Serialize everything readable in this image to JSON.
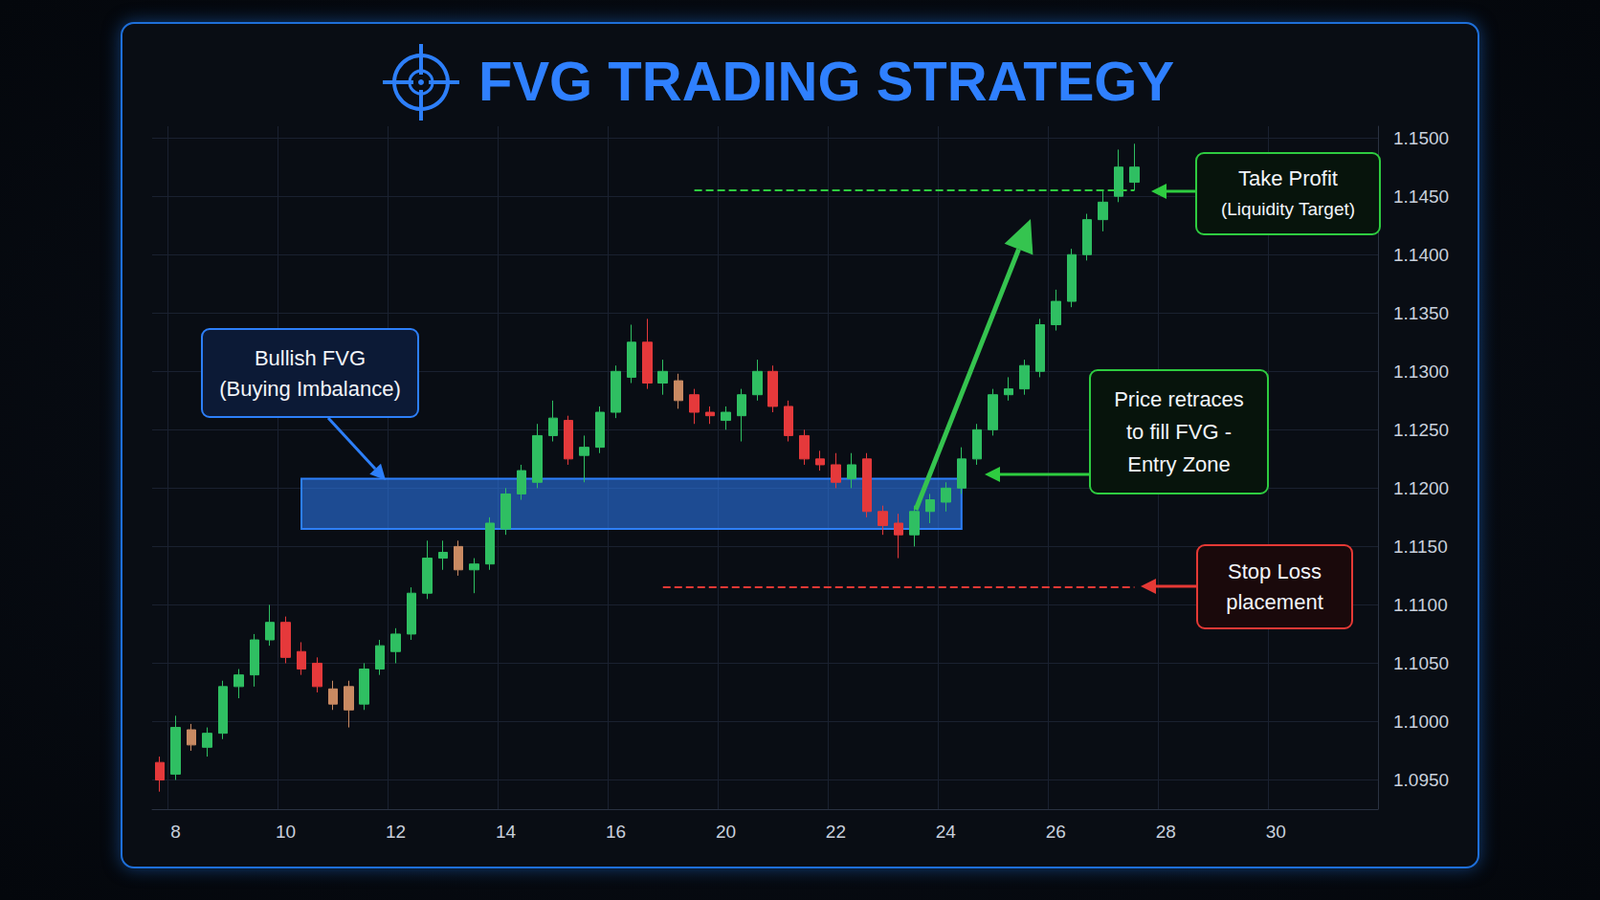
{
  "chart_data": {
    "type": "candlestick",
    "title": "FVG TRADING STRATEGY",
    "x": [
      null,
      "8",
      null,
      null,
      null,
      null,
      null,
      null,
      "10",
      null,
      null,
      null,
      null,
      null,
      null,
      "12",
      null,
      null,
      null,
      null,
      null,
      null,
      "14",
      null,
      null,
      null,
      null,
      null,
      null,
      "16",
      null,
      null,
      null,
      null,
      null,
      null,
      "20",
      null,
      null,
      null,
      null,
      null,
      null,
      "22",
      null,
      null,
      null,
      null,
      null,
      null,
      "24",
      null,
      null,
      null,
      null,
      null,
      null,
      "26",
      null,
      null,
      null,
      null,
      null,
      null,
      "28",
      null,
      null,
      null,
      null,
      null,
      null,
      "30",
      null,
      null,
      null,
      null,
      null,
      null
    ],
    "open": [
      1.0965,
      1.0955,
      1.0993,
      1.0978,
      1.099,
      1.103,
      1.104,
      1.107,
      1.1085,
      1.106,
      1.105,
      1.1028,
      1.103,
      1.1015,
      1.1045,
      1.106,
      1.1075,
      1.111,
      1.114,
      1.115,
      1.113,
      1.1135,
      1.1165,
      1.1195,
      1.1205,
      1.1245,
      1.1258,
      1.1228,
      1.1235,
      1.1265,
      1.1295,
      1.1325,
      1.129,
      1.1292,
      1.128,
      1.1265,
      1.1258,
      1.1262,
      1.128,
      1.13,
      1.127,
      1.1245,
      1.1225,
      1.122,
      1.1208,
      1.1225,
      1.118,
      1.117,
      1.116,
      1.118,
      1.1188,
      1.12,
      1.1225,
      1.125,
      1.128,
      1.1285,
      1.13,
      1.134,
      1.136,
      1.14,
      1.143,
      1.145,
      1.1462,
      null,
      null,
      null,
      null,
      null,
      null,
      null,
      null,
      null,
      null,
      null,
      null,
      null,
      null,
      null
    ],
    "high": [
      1.097,
      1.1005,
      1.0998,
      1.0995,
      1.1035,
      1.1045,
      1.1075,
      1.11,
      1.109,
      1.1068,
      1.1055,
      1.1035,
      1.1035,
      1.105,
      1.107,
      1.108,
      1.1115,
      1.1155,
      1.1155,
      1.1155,
      1.114,
      1.1175,
      1.12,
      1.122,
      1.1255,
      1.1275,
      1.1262,
      1.1245,
      1.127,
      1.1305,
      1.134,
      1.1345,
      1.131,
      1.1298,
      1.1285,
      1.127,
      1.127,
      1.1285,
      1.131,
      1.1305,
      1.1275,
      1.125,
      1.1232,
      1.123,
      1.123,
      1.123,
      1.1185,
      1.1178,
      1.1185,
      1.1195,
      1.1205,
      1.1235,
      1.1255,
      1.1285,
      1.1295,
      1.131,
      1.1345,
      1.137,
      1.1405,
      1.1435,
      1.1455,
      1.149,
      1.1495,
      null,
      null,
      null,
      null,
      null,
      null,
      null,
      null,
      null,
      null,
      null,
      null,
      null,
      null,
      null
    ],
    "low": [
      1.094,
      1.095,
      1.0975,
      1.097,
      1.0985,
      1.102,
      1.103,
      1.1065,
      1.105,
      1.104,
      1.1025,
      1.101,
      1.0995,
      1.101,
      1.104,
      1.105,
      1.107,
      1.1105,
      1.113,
      1.1125,
      1.111,
      1.113,
      1.116,
      1.119,
      1.12,
      1.124,
      1.122,
      1.1205,
      1.123,
      1.126,
      1.129,
      1.1285,
      1.128,
      1.1268,
      1.1255,
      1.1255,
      1.125,
      1.124,
      1.1275,
      1.1265,
      1.124,
      1.122,
      1.1215,
      1.12,
      1.12,
      1.1175,
      1.116,
      1.114,
      1.115,
      1.117,
      1.118,
      1.1195,
      1.122,
      1.1245,
      1.1275,
      1.128,
      1.1295,
      1.1335,
      1.1355,
      1.1395,
      1.142,
      1.1445,
      1.1455,
      null,
      null,
      null,
      null,
      null,
      null,
      null,
      null,
      null,
      null,
      null,
      null,
      null,
      null,
      null
    ],
    "close": [
      1.095,
      1.0995,
      1.098,
      1.099,
      1.103,
      1.104,
      1.107,
      1.1085,
      1.1055,
      1.1045,
      1.103,
      1.1015,
      1.101,
      1.1045,
      1.1065,
      1.1075,
      1.111,
      1.114,
      1.1145,
      1.113,
      1.1135,
      1.117,
      1.1195,
      1.1215,
      1.1245,
      1.126,
      1.1225,
      1.1235,
      1.1265,
      1.13,
      1.1325,
      1.129,
      1.13,
      1.1275,
      1.1265,
      1.1262,
      1.1265,
      1.128,
      1.13,
      1.127,
      1.1245,
      1.1225,
      1.122,
      1.1205,
      1.122,
      1.118,
      1.1168,
      1.116,
      1.118,
      1.119,
      1.12,
      1.1225,
      1.125,
      1.128,
      1.1285,
      1.1305,
      1.134,
      1.136,
      1.14,
      1.143,
      1.1445,
      1.1475,
      1.1475,
      null,
      null,
      null,
      null,
      null,
      null,
      null,
      null,
      null,
      null,
      null,
      null,
      null,
      null,
      null
    ],
    "colors": [
      "#e5393b",
      "#2fbf62",
      "#c98a62",
      "#2fbf62",
      "#2fbf62",
      "#2fbf62",
      "#2fbf62",
      "#2fbf62",
      "#e5393b",
      "#e5393b",
      "#e5393b",
      "#c98a62",
      "#c98a62",
      "#2fbf62",
      "#2fbf62",
      "#2fbf62",
      "#2fbf62",
      "#2fbf62",
      "#2fbf62",
      "#c98a62",
      "#2fbf62",
      "#2fbf62",
      "#2fbf62",
      "#2fbf62",
      "#2fbf62",
      "#2fbf62",
      "#e5393b",
      "#2fbf62",
      "#2fbf62",
      "#2fbf62",
      "#2fbf62",
      "#e5393b",
      "#2fbf62",
      "#c98a62",
      "#e5393b",
      "#e5393b",
      "#2fbf62",
      "#2fbf62",
      "#2fbf62",
      "#e5393b",
      "#e5393b",
      "#e5393b",
      "#e5393b",
      "#e5393b",
      "#2fbf62",
      "#e5393b",
      "#e5393b",
      "#e5393b",
      "#2fbf62",
      "#2fbf62",
      "#2fbf62",
      "#2fbf62",
      "#2fbf62",
      "#2fbf62",
      "#2fbf62",
      "#2fbf62",
      "#2fbf62",
      "#2fbf62",
      "#2fbf62",
      "#2fbf62",
      "#2fbf62",
      "#2fbf62",
      "#2fbf62",
      null,
      null,
      null,
      null,
      null,
      null,
      null,
      null,
      null,
      null,
      null,
      null,
      null,
      null,
      null
    ],
    "ylim": [
      1.0925,
      1.151
    ],
    "yticks": [
      {
        "value": 1.095,
        "label": "1.0950"
      },
      {
        "value": 1.1,
        "label": "1.1000"
      },
      {
        "value": 1.105,
        "label": "1.1050"
      },
      {
        "value": 1.11,
        "label": "1.1100"
      },
      {
        "value": 1.115,
        "label": "1.1150"
      },
      {
        "value": 1.12,
        "label": "1.1200"
      },
      {
        "value": 1.125,
        "label": "1.1250"
      },
      {
        "value": 1.13,
        "label": "1.1300"
      },
      {
        "value": 1.135,
        "label": "1.1350"
      },
      {
        "value": 1.14,
        "label": "1.1400"
      },
      {
        "value": 1.145,
        "label": "1.1450"
      },
      {
        "value": 1.15,
        "label": "1.1500"
      }
    ],
    "grid": true,
    "annotations": [
      {
        "type": "zone",
        "text": [
          "Bullish FVG",
          "(Buying Imbalance)"
        ],
        "x": [
          9,
          51
        ],
        "y": [
          1.1165,
          1.1208
        ],
        "color": "#2d7ff9"
      },
      {
        "type": "callout",
        "text": [
          "Price retraces",
          "to fill FVG -",
          "Entry Zone"
        ],
        "color": "#2ecc40"
      },
      {
        "type": "hline",
        "text": [
          "Take Profit",
          "(Liquidity Target)"
        ],
        "x": [
          34,
          62
        ],
        "y": 1.1455,
        "color": "#2ecc40",
        "line_style": "dashed"
      },
      {
        "type": "hline",
        "text": [
          "Stop Loss",
          "placement"
        ],
        "x": [
          32,
          62
        ],
        "y": 1.1115,
        "color": "#e53935",
        "line_style": "dashed"
      }
    ]
  }
}
